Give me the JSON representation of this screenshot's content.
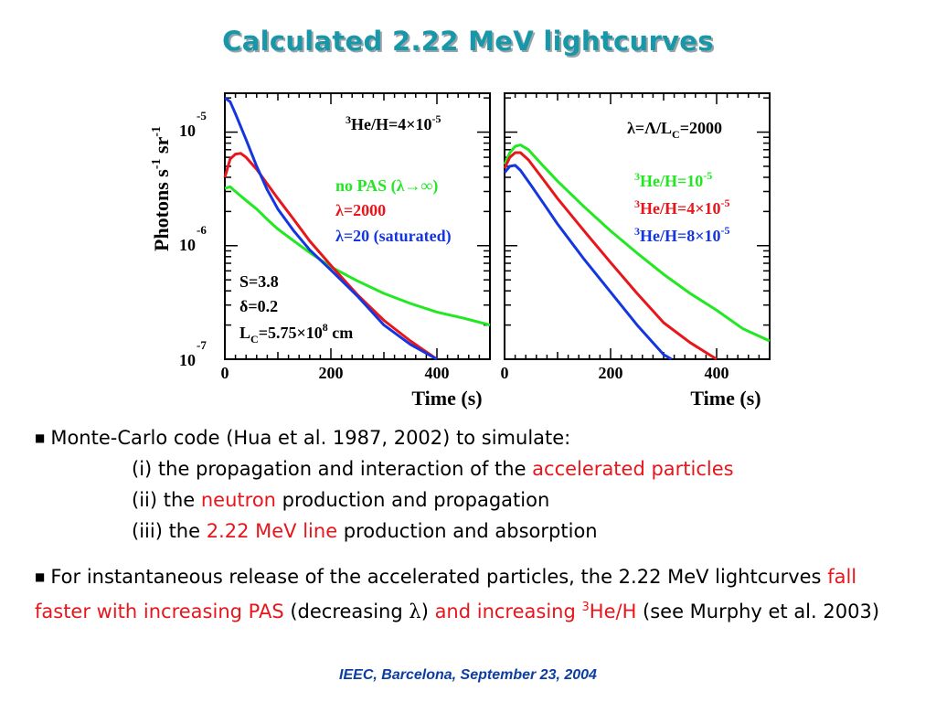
{
  "title": "Calculated 2.22 MeV lightcurves",
  "chart_data": [
    {
      "type": "line",
      "panel": "left",
      "xlabel": "Time (s)",
      "ylabel": "Photons s-1 sr-1",
      "xlim": [
        0,
        500
      ],
      "ylim": [
        1e-07,
        2.2e-05
      ],
      "yscale": "log",
      "xticks": [
        "0",
        "200",
        "400"
      ],
      "yticks": [
        {
          "value": 1e-05,
          "label": "10 -5"
        },
        {
          "value": 1e-06,
          "label": "10 -6"
        },
        {
          "value": 1e-07,
          "label": "10 -7"
        }
      ],
      "annotation": "3He/H=4×10-5",
      "params": [
        "S=3.8",
        "δ=0.2",
        "LC=5.75×108 cm"
      ],
      "legend_position": "center-right",
      "series": [
        {
          "name": "no PAS (λ→∞)",
          "color": "#22e822",
          "points": [
            [
              0,
              3.2e-06
            ],
            [
              10,
              3.3e-06
            ],
            [
              20,
              3e-06
            ],
            [
              40,
              2.5e-06
            ],
            [
              60,
              2.1e-06
            ],
            [
              80,
              1.7e-06
            ],
            [
              100,
              1.4e-06
            ],
            [
              130,
              1.1e-06
            ],
            [
              160,
              8.7e-07
            ],
            [
              200,
              6.5e-07
            ],
            [
              250,
              4.9e-07
            ],
            [
              300,
              3.8e-07
            ],
            [
              350,
              3.1e-07
            ],
            [
              400,
              2.6e-07
            ],
            [
              450,
              2.3e-07
            ],
            [
              500,
              2e-07
            ]
          ]
        },
        {
          "name": "λ=2000",
          "color": "#e8151b",
          "points": [
            [
              0,
              4e-06
            ],
            [
              10,
              5.8e-06
            ],
            [
              20,
              6.4e-06
            ],
            [
              30,
              6.5e-06
            ],
            [
              40,
              6e-06
            ],
            [
              60,
              4.7e-06
            ],
            [
              80,
              3.5e-06
            ],
            [
              100,
              2.6e-06
            ],
            [
              130,
              1.7e-06
            ],
            [
              160,
              1.1e-06
            ],
            [
              200,
              6.7e-07
            ],
            [
              250,
              3.7e-07
            ],
            [
              300,
              2.2e-07
            ],
            [
              350,
              1.45e-07
            ],
            [
              400,
              1e-07
            ]
          ]
        },
        {
          "name": "λ=20 (saturated)",
          "color": "#1436e0",
          "points": [
            [
              0,
              2e-05
            ],
            [
              10,
              1.85e-05
            ],
            [
              20,
              1.45e-05
            ],
            [
              40,
              8.6e-06
            ],
            [
              60,
              5e-06
            ],
            [
              80,
              3.1e-06
            ],
            [
              100,
              2.1e-06
            ],
            [
              130,
              1.35e-06
            ],
            [
              160,
              9.2e-07
            ],
            [
              200,
              6.1e-07
            ],
            [
              250,
              3.6e-07
            ],
            [
              300,
              2e-07
            ],
            [
              350,
              1.35e-07
            ],
            [
              400,
              1e-07
            ]
          ]
        }
      ]
    },
    {
      "type": "line",
      "panel": "right",
      "xlabel": "Time (s)",
      "xlim": [
        0,
        500
      ],
      "ylim": [
        1e-07,
        2.2e-05
      ],
      "yscale": "log",
      "xticks": [
        "0",
        "200",
        "400"
      ],
      "annotation": "λ=Λ/LC=2000",
      "legend_position": "center-right",
      "series": [
        {
          "name": "3He/H=10-5",
          "color": "#22e822",
          "points": [
            [
              0,
              5.2e-06
            ],
            [
              10,
              6.6e-06
            ],
            [
              20,
              7.5e-06
            ],
            [
              30,
              7.7e-06
            ],
            [
              45,
              7e-06
            ],
            [
              70,
              5.2e-06
            ],
            [
              100,
              3.7e-06
            ],
            [
              150,
              2.2e-06
            ],
            [
              200,
              1.35e-06
            ],
            [
              250,
              8.6e-07
            ],
            [
              300,
              5.6e-07
            ],
            [
              350,
              3.8e-07
            ],
            [
              400,
              2.7e-07
            ],
            [
              450,
              1.85e-07
            ],
            [
              500,
              1.45e-07
            ]
          ]
        },
        {
          "name": "3He/H=4×10-5",
          "color": "#e8151b",
          "points": [
            [
              0,
              4.8e-06
            ],
            [
              10,
              6e-06
            ],
            [
              20,
              6.6e-06
            ],
            [
              30,
              6.6e-06
            ],
            [
              45,
              5.7e-06
            ],
            [
              70,
              4e-06
            ],
            [
              100,
              2.6e-06
            ],
            [
              150,
              1.35e-06
            ],
            [
              200,
              7.1e-07
            ],
            [
              250,
              3.8e-07
            ],
            [
              300,
              2.1e-07
            ],
            [
              350,
              1.4e-07
            ],
            [
              400,
              1e-07
            ]
          ]
        },
        {
          "name": "3He/H=8×10-5",
          "color": "#1436e0",
          "points": [
            [
              0,
              4.4e-06
            ],
            [
              10,
              5e-06
            ],
            [
              20,
              5.1e-06
            ],
            [
              30,
              4.6e-06
            ],
            [
              50,
              3.4e-06
            ],
            [
              75,
              2.3e-06
            ],
            [
              100,
              1.55e-06
            ],
            [
              150,
              7.6e-07
            ],
            [
              200,
              3.9e-07
            ],
            [
              250,
              2e-07
            ],
            [
              300,
              1.1e-07
            ],
            [
              315,
              1e-07
            ]
          ]
        }
      ]
    }
  ],
  "labels": {
    "left_annotation": {
      "pre": "3",
      "main": "He/H=4×10",
      "exp": "-5"
    },
    "left_legend": [
      "no PAS (λ→∞)",
      "λ=2000",
      "λ=20 (saturated)"
    ],
    "left_params": {
      "s": "S=3.8",
      "delta": "δ=0.2",
      "lc_pre": "L",
      "lc_sub": "C",
      "lc_main": "=5.75×10",
      "lc_exp": "8",
      "lc_post": " cm"
    },
    "right_annotation": {
      "main": "λ=Λ/L",
      "sub": "C",
      "post": "=2000"
    },
    "right_legend": [
      {
        "pre": "3",
        "main": "He/H=10",
        "exp": "-5"
      },
      {
        "pre": "3",
        "main": "He/H=4×10",
        "exp": "-5"
      },
      {
        "pre": "3",
        "main": "He/H=8×10",
        "exp": "-5"
      }
    ],
    "ylabel": {
      "main": "Photons s",
      "exp1": "-1",
      "mid": " sr",
      "exp2": "-1"
    },
    "ytick_base": "10",
    "ytick_exps": [
      "-5",
      "-6",
      "-7"
    ],
    "xticks": [
      "0",
      "200",
      "400"
    ],
    "xlabel": "Time (s)"
  },
  "bullets": {
    "b1_intro": "Monte-Carlo code (Hua et al. 1987, 2002) to simulate:",
    "b1_i_pre": "(i) the propagation and interaction of the ",
    "b1_i_red": "accelerated particles",
    "b1_ii_pre": "(ii) the ",
    "b1_ii_red": "neutron",
    "b1_ii_post": " production and propagation",
    "b1_iii_pre": "(iii) the ",
    "b1_iii_red": "2.22 MeV line",
    "b1_iii_post": " production and absorption",
    "b2_part1": "For instantaneous release of the accelerated particles, the 2.22 MeV lightcurves ",
    "b2_red1": "fall faster with increasing PAS",
    "b2_part2": " (decreasing ",
    "b2_lambda": "λ",
    "b2_part3": ") ",
    "b2_red2": "and increasing ",
    "b2_sup": "3",
    "b2_red3": "He/H",
    "b2_part4": " (see Murphy et al. 2003)"
  },
  "bullet_symbol": "■",
  "footer": "IEEC, Barcelona, September 23, 2004",
  "colors": {
    "title": "#1797a8",
    "green": "#22e822",
    "red": "#e8151b",
    "blue": "#1436e0",
    "footer": "#0b3da3"
  }
}
